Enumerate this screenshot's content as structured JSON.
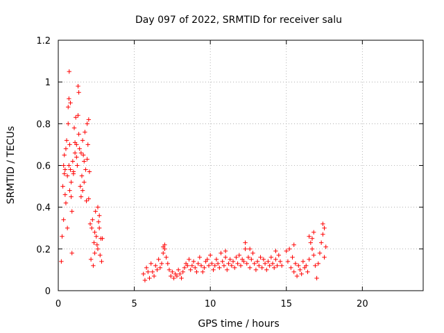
{
  "chart_data": {
    "type": "scatter",
    "title": "Day 097 of 2022, SRMTID for receiver salu",
    "xlabel": "GPS time / hours",
    "ylabel": "SRMTID / TECUs",
    "xlim": [
      0,
      24
    ],
    "ylim": [
      0,
      1.2
    ],
    "xticks": [
      0,
      5,
      10,
      15,
      20
    ],
    "xtick_labels": [
      "0",
      "5",
      "10",
      "15",
      "20"
    ],
    "yticks": [
      0,
      0.2,
      0.4,
      0.6,
      0.8,
      1.0,
      1.2
    ],
    "ytick_labels": [
      "0",
      "0.2",
      "0.4",
      "0.6",
      "0.8",
      "1",
      "1.2"
    ],
    "grid": true,
    "marker": "plus",
    "color": "#ff0000",
    "series": [
      {
        "name": "SRMTID",
        "x": [
          0.2,
          0.25,
          0.3,
          0.35,
          0.4,
          0.45,
          0.5,
          0.55,
          0.6,
          0.65,
          0.7,
          0.72,
          0.75,
          0.8,
          0.85,
          0.9,
          0.95,
          1.0,
          1.05,
          1.1,
          1.15,
          1.2,
          1.25,
          1.3,
          1.35,
          1.4,
          1.45,
          1.5,
          1.55,
          1.6,
          1.65,
          1.7,
          1.75,
          1.8,
          1.85,
          1.9,
          1.95,
          2.0,
          2.05,
          2.1,
          2.15,
          2.2,
          2.25,
          2.3,
          2.35,
          2.4,
          2.45,
          2.5,
          2.55,
          2.6,
          2.65,
          2.7,
          2.75,
          2.8,
          2.85,
          2.9,
          0.65,
          0.7,
          0.75,
          1.3,
          1.35,
          0.6,
          0.9,
          1.0,
          1.2,
          1.5,
          1.7,
          0.5,
          0.45,
          0.8,
          1.1,
          1.9,
          2.0,
          2.4,
          2.6,
          2.7,
          0.35,
          0.4,
          0.85,
          1.6,
          5.6,
          5.7,
          5.8,
          5.9,
          6.0,
          6.1,
          6.2,
          6.3,
          6.4,
          6.5,
          6.6,
          6.7,
          6.8,
          6.9,
          7.0,
          7.1,
          7.2,
          7.3,
          7.4,
          7.5,
          7.6,
          7.7,
          7.8,
          7.9,
          8.0,
          8.1,
          8.2,
          8.3,
          8.4,
          8.5,
          8.6,
          8.7,
          8.8,
          8.9,
          9.0,
          9.1,
          9.2,
          9.3,
          9.4,
          9.5,
          9.6,
          9.7,
          9.8,
          9.9,
          10.0,
          10.1,
          10.2,
          10.3,
          10.4,
          10.5,
          10.6,
          10.7,
          10.8,
          10.9,
          11.0,
          11.1,
          11.2,
          11.3,
          11.4,
          11.5,
          11.6,
          11.7,
          11.8,
          11.9,
          12.0,
          12.1,
          12.2,
          12.3,
          12.4,
          12.5,
          12.6,
          12.7,
          12.8,
          12.9,
          13.0,
          13.1,
          13.2,
          13.3,
          13.4,
          13.5,
          13.6,
          13.7,
          13.8,
          13.9,
          14.0,
          14.1,
          14.2,
          14.3,
          14.4,
          14.5,
          14.6,
          14.7,
          6.9,
          7.0,
          12.3,
          12.6,
          11.0,
          14.3,
          15.0,
          15.1,
          15.2,
          15.3,
          15.4,
          15.5,
          15.6,
          15.7,
          15.8,
          15.9,
          16.0,
          16.1,
          16.2,
          16.3,
          16.4,
          16.5,
          16.6,
          16.7,
          16.8,
          16.9,
          17.0,
          17.1,
          17.2,
          17.3,
          17.4,
          17.5,
          17.6,
          16.5,
          16.7,
          17.4,
          17.5,
          15.5,
          16.8
        ],
        "y": [
          0.14,
          0.26,
          0.5,
          0.6,
          0.65,
          0.46,
          0.68,
          0.72,
          0.55,
          0.88,
          0.92,
          1.05,
          0.7,
          0.58,
          0.52,
          0.38,
          0.62,
          0.57,
          0.78,
          0.66,
          0.83,
          0.7,
          0.6,
          0.98,
          0.75,
          0.68,
          0.5,
          0.45,
          0.55,
          0.72,
          0.65,
          0.62,
          0.76,
          0.58,
          0.43,
          0.8,
          0.7,
          0.82,
          0.57,
          0.32,
          0.15,
          0.3,
          0.34,
          0.12,
          0.23,
          0.18,
          0.38,
          0.26,
          0.22,
          0.4,
          0.33,
          0.3,
          0.17,
          0.25,
          0.14,
          0.25,
          0.8,
          0.6,
          0.48,
          0.84,
          0.95,
          0.3,
          0.18,
          0.56,
          0.64,
          0.66,
          0.52,
          0.42,
          0.58,
          0.9,
          0.71,
          0.63,
          0.44,
          0.28,
          0.2,
          0.36,
          0.34,
          0.56,
          0.45,
          0.48,
          0.08,
          0.05,
          0.11,
          0.09,
          0.06,
          0.13,
          0.09,
          0.07,
          0.12,
          0.1,
          0.15,
          0.11,
          0.13,
          0.18,
          0.2,
          0.16,
          0.13,
          0.1,
          0.07,
          0.09,
          0.06,
          0.08,
          0.07,
          0.1,
          0.08,
          0.06,
          0.09,
          0.11,
          0.13,
          0.12,
          0.15,
          0.1,
          0.12,
          0.14,
          0.11,
          0.09,
          0.13,
          0.16,
          0.12,
          0.09,
          0.11,
          0.14,
          0.15,
          0.12,
          0.17,
          0.13,
          0.1,
          0.12,
          0.15,
          0.13,
          0.11,
          0.18,
          0.14,
          0.12,
          0.16,
          0.1,
          0.13,
          0.15,
          0.12,
          0.14,
          0.11,
          0.16,
          0.13,
          0.17,
          0.12,
          0.15,
          0.14,
          0.2,
          0.13,
          0.16,
          0.11,
          0.15,
          0.18,
          0.13,
          0.1,
          0.14,
          0.12,
          0.16,
          0.11,
          0.15,
          0.13,
          0.1,
          0.14,
          0.12,
          0.16,
          0.13,
          0.11,
          0.15,
          0.12,
          0.17,
          0.14,
          0.12,
          0.21,
          0.22,
          0.23,
          0.2,
          0.19,
          0.19,
          0.19,
          0.14,
          0.2,
          0.11,
          0.16,
          0.09,
          0.13,
          0.07,
          0.12,
          0.1,
          0.08,
          0.14,
          0.11,
          0.12,
          0.09,
          0.15,
          0.23,
          0.2,
          0.17,
          0.12,
          0.06,
          0.13,
          0.18,
          0.23,
          0.27,
          0.16,
          0.21,
          0.26,
          0.25,
          0.32,
          0.3,
          0.22,
          0.28
        ]
      }
    ]
  }
}
